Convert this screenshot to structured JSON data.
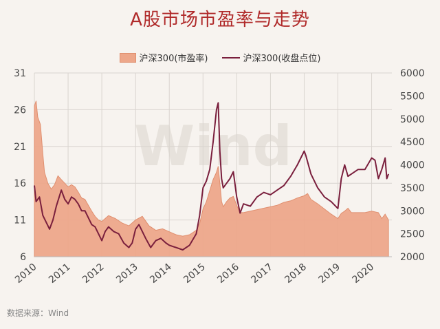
{
  "title": "A股市场市盈率与走势",
  "source": "数据来源：Wind",
  "watermark": "Wind",
  "chart_data": {
    "type": "line",
    "x_ticks": [
      "2010",
      "2011",
      "2012",
      "2013",
      "2014",
      "2015",
      "2016",
      "2017",
      "2018",
      "2019",
      "2020"
    ],
    "x_range": [
      2010.0,
      2020.6
    ],
    "y_left": {
      "ticks": [
        6,
        11,
        16,
        21,
        26,
        31
      ],
      "range": [
        6,
        31
      ]
    },
    "y_right": {
      "ticks": [
        2000,
        2500,
        3000,
        3500,
        4000,
        4500,
        5000,
        5500,
        6000
      ],
      "range": [
        2000,
        6000
      ]
    },
    "grid": true,
    "legend_position": "top-center",
    "series": [
      {
        "name": "沪深300(市盈率)",
        "type": "area",
        "axis": "left",
        "color": "#eda78a",
        "points": [
          [
            2010.0,
            26.5
          ],
          [
            2010.05,
            27.2
          ],
          [
            2010.1,
            25.0
          ],
          [
            2010.18,
            24.0
          ],
          [
            2010.25,
            20.0
          ],
          [
            2010.3,
            17.5
          ],
          [
            2010.4,
            16.0
          ],
          [
            2010.5,
            15.2
          ],
          [
            2010.6,
            15.8
          ],
          [
            2010.7,
            17.0
          ],
          [
            2010.8,
            16.5
          ],
          [
            2010.9,
            16.0
          ],
          [
            2011.0,
            15.5
          ],
          [
            2011.1,
            15.8
          ],
          [
            2011.2,
            15.5
          ],
          [
            2011.3,
            14.8
          ],
          [
            2011.4,
            14.0
          ],
          [
            2011.5,
            13.8
          ],
          [
            2011.6,
            13.0
          ],
          [
            2011.7,
            12.2
          ],
          [
            2011.8,
            11.5
          ],
          [
            2011.9,
            11.0
          ],
          [
            2012.0,
            10.8
          ],
          [
            2012.2,
            11.6
          ],
          [
            2012.4,
            11.2
          ],
          [
            2012.6,
            10.6
          ],
          [
            2012.8,
            10.2
          ],
          [
            2013.0,
            11.0
          ],
          [
            2013.2,
            11.5
          ],
          [
            2013.4,
            10.2
          ],
          [
            2013.6,
            9.6
          ],
          [
            2013.8,
            9.8
          ],
          [
            2014.0,
            9.4
          ],
          [
            2014.2,
            9.0
          ],
          [
            2014.4,
            8.8
          ],
          [
            2014.6,
            9.0
          ],
          [
            2014.8,
            9.6
          ],
          [
            2014.9,
            10.5
          ],
          [
            2015.0,
            12.5
          ],
          [
            2015.1,
            13.5
          ],
          [
            2015.2,
            15.0
          ],
          [
            2015.3,
            16.5
          ],
          [
            2015.4,
            17.5
          ],
          [
            2015.45,
            18.3
          ],
          [
            2015.5,
            16.0
          ],
          [
            2015.55,
            13.5
          ],
          [
            2015.6,
            12.8
          ],
          [
            2015.7,
            13.5
          ],
          [
            2015.8,
            14.0
          ],
          [
            2015.9,
            14.2
          ],
          [
            2016.0,
            13.0
          ],
          [
            2016.1,
            12.0
          ],
          [
            2016.2,
            12.0
          ],
          [
            2016.4,
            12.2
          ],
          [
            2016.6,
            12.4
          ],
          [
            2016.8,
            12.6
          ],
          [
            2017.0,
            12.8
          ],
          [
            2017.2,
            13.0
          ],
          [
            2017.4,
            13.4
          ],
          [
            2017.6,
            13.6
          ],
          [
            2017.8,
            14.0
          ],
          [
            2018.0,
            14.3
          ],
          [
            2018.1,
            14.6
          ],
          [
            2018.2,
            13.8
          ],
          [
            2018.4,
            13.2
          ],
          [
            2018.6,
            12.5
          ],
          [
            2018.8,
            11.8
          ],
          [
            2019.0,
            11.2
          ],
          [
            2019.1,
            11.9
          ],
          [
            2019.2,
            12.2
          ],
          [
            2019.3,
            12.6
          ],
          [
            2019.4,
            12.0
          ],
          [
            2019.6,
            12.0
          ],
          [
            2019.8,
            12.0
          ],
          [
            2020.0,
            12.2
          ],
          [
            2020.2,
            12.0
          ],
          [
            2020.3,
            11.2
          ],
          [
            2020.4,
            11.8
          ],
          [
            2020.5,
            11.0
          ]
        ]
      },
      {
        "name": "沪深300(收盘点位)",
        "type": "line",
        "axis": "right",
        "color": "#7a1f3d",
        "points": [
          [
            2010.0,
            3550
          ],
          [
            2010.05,
            3200
          ],
          [
            2010.15,
            3300
          ],
          [
            2010.25,
            2900
          ],
          [
            2010.35,
            2750
          ],
          [
            2010.45,
            2600
          ],
          [
            2010.55,
            2800
          ],
          [
            2010.65,
            3100
          ],
          [
            2010.8,
            3450
          ],
          [
            2010.9,
            3250
          ],
          [
            2011.0,
            3150
          ],
          [
            2011.1,
            3300
          ],
          [
            2011.2,
            3250
          ],
          [
            2011.3,
            3150
          ],
          [
            2011.4,
            3000
          ],
          [
            2011.5,
            3000
          ],
          [
            2011.6,
            2850
          ],
          [
            2011.7,
            2700
          ],
          [
            2011.8,
            2650
          ],
          [
            2011.9,
            2500
          ],
          [
            2012.0,
            2350
          ],
          [
            2012.1,
            2550
          ],
          [
            2012.2,
            2650
          ],
          [
            2012.35,
            2550
          ],
          [
            2012.5,
            2500
          ],
          [
            2012.65,
            2300
          ],
          [
            2012.8,
            2200
          ],
          [
            2012.9,
            2300
          ],
          [
            2013.0,
            2600
          ],
          [
            2013.1,
            2700
          ],
          [
            2013.2,
            2550
          ],
          [
            2013.3,
            2400
          ],
          [
            2013.45,
            2200
          ],
          [
            2013.6,
            2350
          ],
          [
            2013.75,
            2400
          ],
          [
            2013.9,
            2300
          ],
          [
            2014.0,
            2250
          ],
          [
            2014.2,
            2200
          ],
          [
            2014.4,
            2150
          ],
          [
            2014.6,
            2250
          ],
          [
            2014.8,
            2500
          ],
          [
            2014.9,
            2900
          ],
          [
            2015.0,
            3500
          ],
          [
            2015.1,
            3650
          ],
          [
            2015.2,
            3900
          ],
          [
            2015.3,
            4500
          ],
          [
            2015.4,
            5200
          ],
          [
            2015.45,
            5350
          ],
          [
            2015.5,
            4300
          ],
          [
            2015.55,
            3700
          ],
          [
            2015.6,
            3500
          ],
          [
            2015.7,
            3600
          ],
          [
            2015.8,
            3700
          ],
          [
            2015.9,
            3850
          ],
          [
            2016.0,
            3300
          ],
          [
            2016.1,
            2950
          ],
          [
            2016.2,
            3150
          ],
          [
            2016.4,
            3100
          ],
          [
            2016.6,
            3300
          ],
          [
            2016.8,
            3400
          ],
          [
            2017.0,
            3350
          ],
          [
            2017.2,
            3450
          ],
          [
            2017.4,
            3550
          ],
          [
            2017.6,
            3750
          ],
          [
            2017.8,
            4000
          ],
          [
            2018.0,
            4300
          ],
          [
            2018.05,
            4200
          ],
          [
            2018.2,
            3800
          ],
          [
            2018.4,
            3500
          ],
          [
            2018.6,
            3300
          ],
          [
            2018.8,
            3200
          ],
          [
            2019.0,
            3050
          ],
          [
            2019.1,
            3700
          ],
          [
            2019.2,
            4000
          ],
          [
            2019.3,
            3750
          ],
          [
            2019.4,
            3800
          ],
          [
            2019.6,
            3900
          ],
          [
            2019.8,
            3900
          ],
          [
            2020.0,
            4150
          ],
          [
            2020.1,
            4100
          ],
          [
            2020.2,
            3700
          ],
          [
            2020.3,
            3900
          ],
          [
            2020.4,
            4150
          ],
          [
            2020.45,
            3700
          ],
          [
            2020.5,
            3800
          ]
        ]
      }
    ]
  }
}
